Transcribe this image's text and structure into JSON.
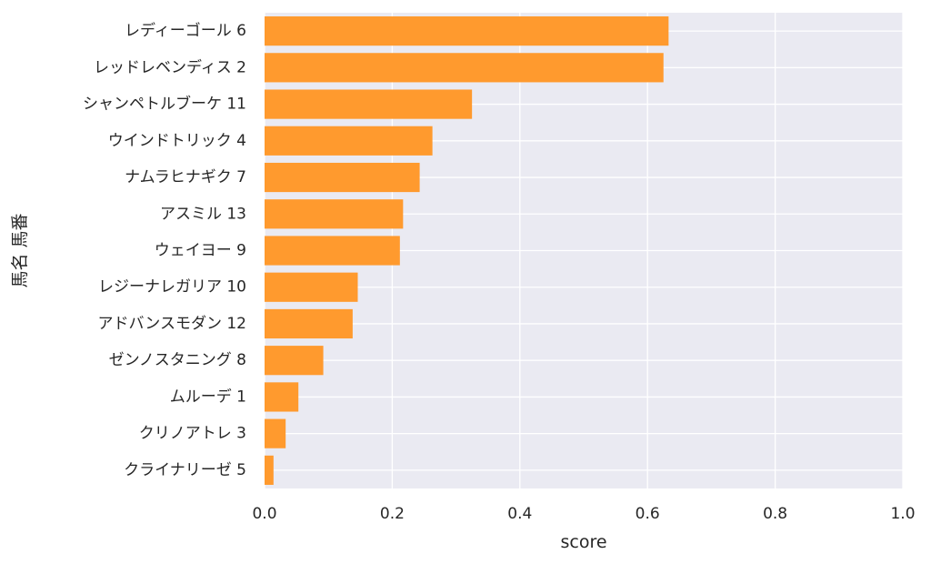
{
  "chart_data": {
    "type": "bar",
    "orientation": "horizontal",
    "categories": [
      "レディーゴール 6",
      "レッドレベンディス 2",
      "シャンペトルブーケ 11",
      "ウインドトリック 4",
      "ナムラヒナギク 7",
      "アスミル 13",
      "ウェイヨー 9",
      "レジーナレガリア 10",
      "アドバンスモダン 12",
      "ゼンノスタニング 8",
      "ムルーデ 1",
      "クリノアトレ 3",
      "クライナリーゼ 5"
    ],
    "values": [
      0.633,
      0.625,
      0.325,
      0.263,
      0.243,
      0.217,
      0.212,
      0.146,
      0.138,
      0.092,
      0.053,
      0.033,
      0.014
    ],
    "xlabel": "score",
    "ylabel": "馬名 馬番",
    "xlim": [
      0,
      1.0
    ],
    "xticks": [
      "0.0",
      "0.2",
      "0.4",
      "0.6",
      "0.8",
      "1.0"
    ],
    "grid": true,
    "colors": {
      "bar": "#ff9a2e",
      "plot_bg": "#eaeaf2",
      "grid": "#ffffff"
    }
  }
}
